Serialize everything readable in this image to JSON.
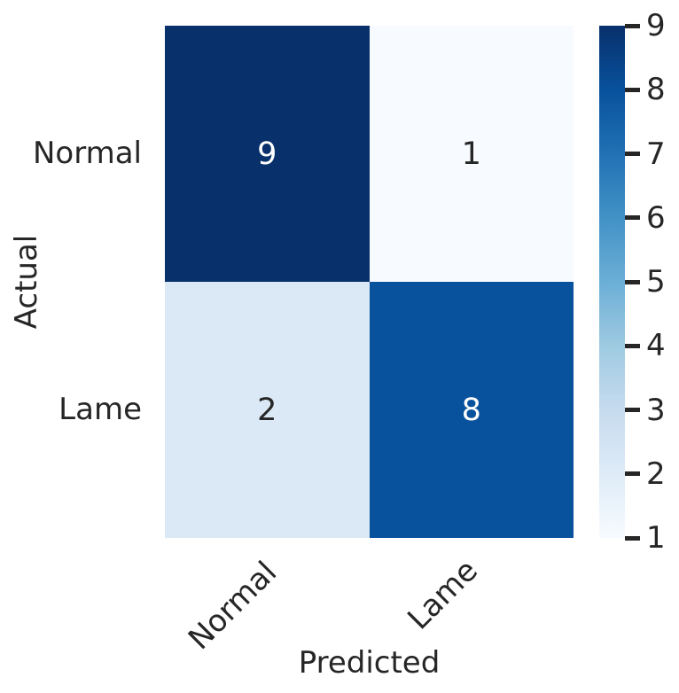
{
  "figure": {
    "background": "#ffffff",
    "text_color": "#262626"
  },
  "chart_data": {
    "type": "heatmap",
    "subtype": "confusion-matrix",
    "title": "",
    "xlabel": "Predicted",
    "ylabel": "Actual",
    "x_categories": [
      "Normal",
      "Lame"
    ],
    "y_categories": [
      "Normal",
      "Lame"
    ],
    "matrix": [
      [
        9,
        1
      ],
      [
        2,
        8
      ]
    ],
    "colormap": "Blues",
    "vmin": 1,
    "vmax": 9,
    "grid": false,
    "cells": [
      {
        "row": "Normal",
        "col": "Normal",
        "value": "9",
        "bg": "#08306b",
        "fg": "#ffffff"
      },
      {
        "row": "Normal",
        "col": "Lame",
        "value": "1",
        "bg": "#f7fbff",
        "fg": "#262626"
      },
      {
        "row": "Lame",
        "col": "Normal",
        "value": "2",
        "bg": "#dbe9f6",
        "fg": "#262626"
      },
      {
        "row": "Lame",
        "col": "Lame",
        "value": "8",
        "bg": "#08519c",
        "fg": "#ffffff"
      }
    ],
    "colorbar": {
      "position": "right",
      "ticks": [
        "9",
        "8",
        "7",
        "6",
        "5",
        "4",
        "3",
        "2",
        "1"
      ],
      "gradient_stops_bottom_to_top": [
        "#f7fbff",
        "#deebf7",
        "#c6dbef",
        "#9ecae1",
        "#6baed6",
        "#4292c6",
        "#2171b5",
        "#08519c",
        "#08306b"
      ]
    }
  }
}
